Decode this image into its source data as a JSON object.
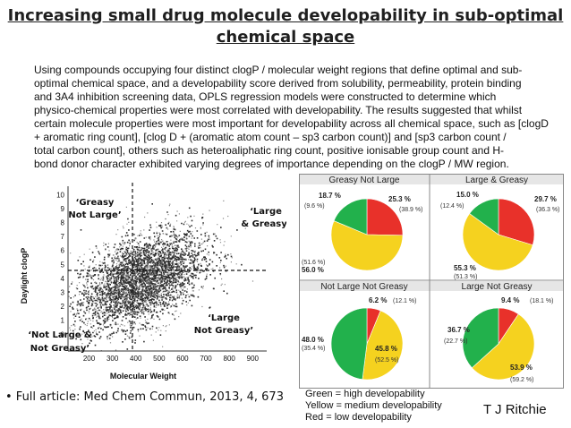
{
  "slide": {
    "title_line1": "Increasing small drug molecule developability in sub-optimal",
    "title_line2": "chemical space",
    "abstract_lines": [
      "Using compounds occupying four distinct clogP / molecular weight regions that define optimal and sub-",
      "optimal chemical space, and a developability score derived from solubility, permeability, protein binding",
      "and 3A4 inhibition screening data, OPLS regression models were constructed to determine which",
      "physico-chemical properties were most correlated with developability. The results suggested that whilst",
      "certain molecule properties were most important for developability across all chemical space, such as [clogD",
      "+ aromatic ring count], [clog D + (aromatic atom count – sp3 carbon count)] and [sp3 carbon count /",
      "total carbon count], others such as heteroaliphatic ring count, positive ionisable group count and H-",
      "bond donor character exhibited varying degrees of importance depending on the clogP / MW region."
    ],
    "bullet": "• Full article: Med Chem Commun, 2013, 4, 673",
    "legend": {
      "green": "Green = high developability",
      "yellow": "Yellow = medium developability",
      "red": "Red = low developability"
    },
    "author": "T J Ritchie",
    "colors": {
      "green": "#22b14c",
      "yellow": "#f5d21f",
      "red": "#e8312a"
    }
  },
  "scatter": {
    "xlabel": "Molecular Weight",
    "ylabel": "Daylight clogP",
    "x_ticks": [
      "200",
      "300",
      "400",
      "500",
      "600",
      "700",
      "800",
      "900"
    ],
    "y_ticks": [
      "0",
      "1",
      "2",
      "3",
      "4",
      "5",
      "6",
      "7",
      "8",
      "9",
      "10"
    ],
    "quadrants": {
      "greasy_not_large": [
        "‘Greasy",
        "Not Large’"
      ],
      "large_greasy": [
        "‘Large",
        "& Greasy’"
      ],
      "not_large_not_greasy": [
        "‘Not Large &",
        "Not Greasy’"
      ],
      "large_not_greasy": [
        "‘Large",
        "Not Greasy’"
      ]
    }
  },
  "chart_data": {
    "type": "pie",
    "charts": [
      {
        "title": "Greasy Not Large",
        "slices": [
          {
            "name": "red",
            "value": 25.3,
            "label": "25.3 %",
            "sublabel": "(38.9 %)"
          },
          {
            "name": "yellow",
            "value": 56.0,
            "label": "56.0 %",
            "sublabel": "(51.6 %)"
          },
          {
            "name": "green",
            "value": 18.7,
            "label": "18.7 %",
            "sublabel": "(9.6 %)"
          }
        ]
      },
      {
        "title": "Large & Greasy",
        "slices": [
          {
            "name": "red",
            "value": 29.7,
            "label": "29.7 %",
            "sublabel": "(36.3 %)"
          },
          {
            "name": "yellow",
            "value": 55.3,
            "label": "55.3 %",
            "sublabel": "(51.3 %)"
          },
          {
            "name": "green",
            "value": 15.0,
            "label": "15.0 %",
            "sublabel": "(12.4 %)"
          }
        ]
      },
      {
        "title": "Not Large Not Greasy",
        "slices": [
          {
            "name": "red",
            "value": 6.2,
            "label": "6.2 %",
            "sublabel": "(12.1 %)"
          },
          {
            "name": "yellow",
            "value": 45.8,
            "label": "45.8 %",
            "sublabel": "(52.5 %)"
          },
          {
            "name": "green",
            "value": 48.0,
            "label": "48.0 %",
            "sublabel": "(35.4 %)"
          }
        ]
      },
      {
        "title": "Large Not Greasy",
        "slices": [
          {
            "name": "red",
            "value": 9.4,
            "label": "9.4 %",
            "sublabel": "(18.1 %)"
          },
          {
            "name": "yellow",
            "value": 53.9,
            "label": "53.9 %",
            "sublabel": "(59.2 %)"
          },
          {
            "name": "green",
            "value": 36.7,
            "label": "36.7 %",
            "sublabel": "(22.7 %)"
          }
        ]
      }
    ]
  }
}
